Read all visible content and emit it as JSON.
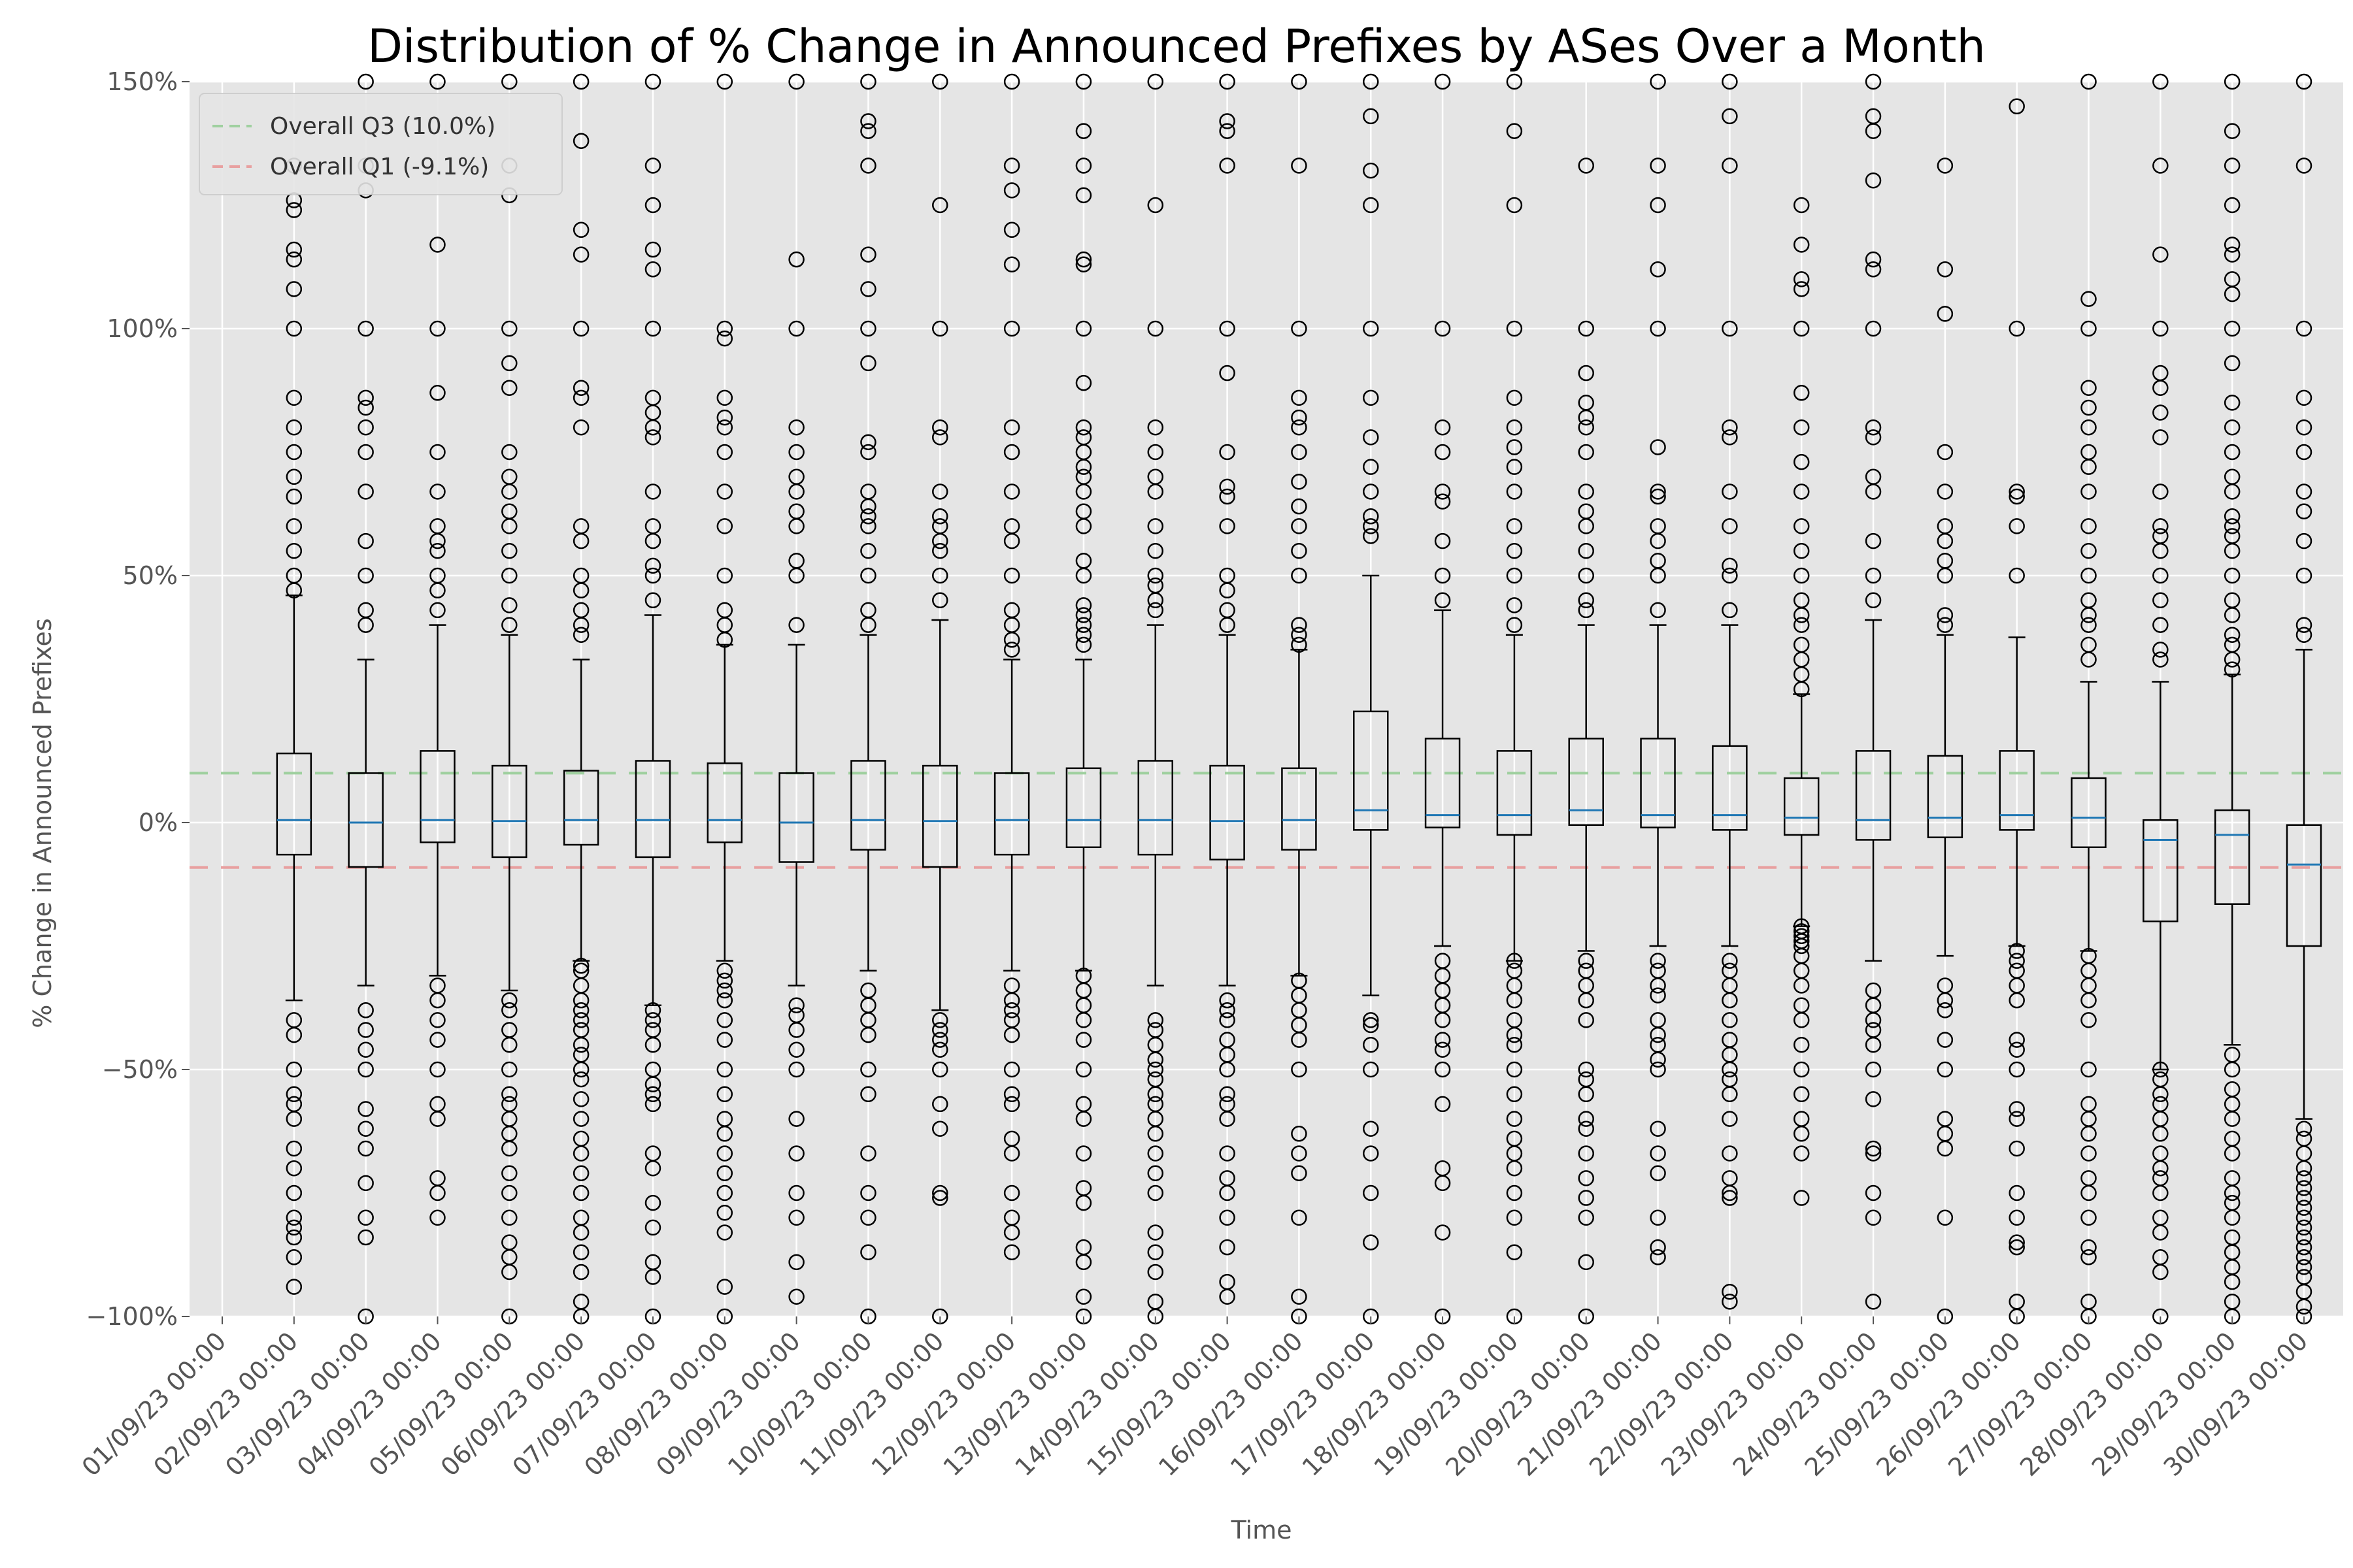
{
  "chart_data": {
    "type": "box",
    "title": "Distribution of % Change in Announced Prefixes by ASes Over a Month",
    "xlabel": "Time",
    "ylabel": "% Change in Announced Prefixes",
    "ylim": [
      -100,
      150
    ],
    "yticks": [
      -100,
      -50,
      0,
      50,
      100,
      150
    ],
    "ytick_labels": [
      "−100%",
      "−50%",
      "0%",
      "50%",
      "100%",
      "150%"
    ],
    "grid": true,
    "background": "#e5e5e5",
    "legend_position": "top-left",
    "reference_lines": [
      {
        "label": "Overall Q3 (10.0%)",
        "value": 10.0,
        "color": "#9fd09f"
      },
      {
        "label": "Overall Q1 (-9.1%)",
        "value": -9.1,
        "color": "#e8a0a0"
      }
    ],
    "categories": [
      "01/09/23 00:00",
      "02/09/23 00:00",
      "03/09/23 00:00",
      "04/09/23 00:00",
      "05/09/23 00:00",
      "06/09/23 00:00",
      "07/09/23 00:00",
      "08/09/23 00:00",
      "09/09/23 00:00",
      "10/09/23 00:00",
      "11/09/23 00:00",
      "12/09/23 00:00",
      "13/09/23 00:00",
      "14/09/23 00:00",
      "15/09/23 00:00",
      "16/09/23 00:00",
      "17/09/23 00:00",
      "18/09/23 00:00",
      "19/09/23 00:00",
      "20/09/23 00:00",
      "21/09/23 00:00",
      "22/09/23 00:00",
      "23/09/23 00:00",
      "24/09/23 00:00",
      "25/09/23 00:00",
      "26/09/23 00:00",
      "27/09/23 00:00",
      "28/09/23 00:00",
      "29/09/23 00:00",
      "30/09/23 00:00"
    ],
    "boxes": [
      {
        "date": "02/09/23 00:00",
        "whislo": -36,
        "q1": -6.5,
        "med": 0.5,
        "q3": 14,
        "whishi": 46,
        "outliers": [
          -94,
          -88,
          -84,
          -82,
          -80,
          -75,
          -70,
          -66,
          -60,
          -57,
          -55,
          -50,
          -43,
          -40,
          47,
          50,
          55,
          60,
          66,
          70,
          75,
          80,
          86,
          100,
          108,
          114,
          116,
          124,
          126,
          133
        ]
      },
      {
        "date": "03/09/23 00:00",
        "whislo": -33,
        "q1": -9,
        "med": 0,
        "q3": 10,
        "whishi": 33,
        "outliers": [
          -100,
          -84,
          -80,
          -73,
          -66,
          -62,
          -58,
          -50,
          -46,
          -42,
          -38,
          40,
          43,
          50,
          57,
          67,
          75,
          80,
          84,
          86,
          100,
          128,
          133,
          150
        ]
      },
      {
        "date": "04/09/23 00:00",
        "whislo": -31,
        "q1": -4,
        "med": 0.5,
        "q3": 14.5,
        "whishi": 40,
        "outliers": [
          -80,
          -75,
          -72,
          -60,
          -57,
          -50,
          -44,
          -40,
          -36,
          -33,
          43,
          47,
          50,
          55,
          57,
          60,
          67,
          75,
          87,
          100,
          117,
          150
        ]
      },
      {
        "date": "05/09/23 00:00",
        "whislo": -34,
        "q1": -7,
        "med": 0.3,
        "q3": 11.5,
        "whishi": 38,
        "outliers": [
          -100,
          -91,
          -88,
          -85,
          -80,
          -75,
          -71,
          -66,
          -63,
          -60,
          -57,
          -55,
          -50,
          -45,
          -42,
          -38,
          -36,
          40,
          44,
          50,
          55,
          60,
          63,
          67,
          70,
          75,
          88,
          93,
          100,
          127,
          133,
          150
        ]
      },
      {
        "date": "06/09/23 00:00",
        "whislo": -28,
        "q1": -4.5,
        "med": 0.5,
        "q3": 10.5,
        "whishi": 33,
        "outliers": [
          -100,
          -97,
          -91,
          -87,
          -83,
          -80,
          -75,
          -71,
          -67,
          -64,
          -60,
          -56,
          -52,
          -50,
          -47,
          -45,
          -42,
          -40,
          -38,
          -36,
          -33,
          -30,
          -29,
          38,
          40,
          43,
          47,
          50,
          57,
          60,
          80,
          86,
          88,
          100,
          115,
          120,
          138,
          150
        ]
      },
      {
        "date": "07/09/23 00:00",
        "whislo": -37,
        "q1": -7,
        "med": 0.5,
        "q3": 12.5,
        "whishi": 42,
        "outliers": [
          -100,
          -92,
          -89,
          -82,
          -77,
          -70,
          -67,
          -57,
          -55,
          -53,
          -50,
          -45,
          -42,
          -40,
          -38,
          45,
          50,
          52,
          57,
          60,
          67,
          78,
          80,
          83,
          86,
          100,
          112,
          116,
          125,
          133,
          150
        ]
      },
      {
        "date": "08/09/23 00:00",
        "whislo": -28,
        "q1": -4,
        "med": 0.5,
        "q3": 12,
        "whishi": 36,
        "outliers": [
          -100,
          -94,
          -83,
          -79,
          -75,
          -71,
          -67,
          -63,
          -60,
          -55,
          -50,
          -44,
          -40,
          -36,
          -34,
          -32,
          -30,
          37,
          40,
          43,
          50,
          60,
          67,
          75,
          80,
          82,
          86,
          98,
          100,
          150
        ]
      },
      {
        "date": "09/09/23 00:00",
        "whislo": -33,
        "q1": -8,
        "med": 0,
        "q3": 10,
        "whishi": 36,
        "outliers": [
          -96,
          -89,
          -80,
          -75,
          -67,
          -60,
          -50,
          -46,
          -42,
          -39,
          -37,
          40,
          50,
          53,
          60,
          63,
          67,
          70,
          75,
          80,
          100,
          114,
          150
        ]
      },
      {
        "date": "10/09/23 00:00",
        "whislo": -30,
        "q1": -5.5,
        "med": 0.5,
        "q3": 12.5,
        "whishi": 38,
        "outliers": [
          -100,
          -87,
          -80,
          -75,
          -67,
          -55,
          -50,
          -43,
          -40,
          -37,
          -34,
          40,
          43,
          50,
          55,
          60,
          62,
          64,
          67,
          75,
          77,
          93,
          100,
          108,
          115,
          133,
          140,
          142,
          150
        ]
      },
      {
        "date": "11/09/23 00:00",
        "whislo": -38,
        "q1": -9,
        "med": 0.3,
        "q3": 11.5,
        "whishi": 41,
        "outliers": [
          -100,
          -76,
          -75,
          -62,
          -57,
          -50,
          -46,
          -44,
          -42,
          -40,
          45,
          50,
          55,
          57,
          60,
          62,
          67,
          78,
          80,
          100,
          125,
          150
        ]
      },
      {
        "date": "12/09/23 00:00",
        "whislo": -30,
        "q1": -6.5,
        "med": 0.5,
        "q3": 10,
        "whishi": 33,
        "outliers": [
          -87,
          -83,
          -80,
          -75,
          -67,
          -64,
          -57,
          -55,
          -50,
          -43,
          -40,
          -38,
          -36,
          -33,
          35,
          37,
          40,
          43,
          50,
          57,
          60,
          67,
          75,
          80,
          100,
          113,
          120,
          128,
          133,
          150
        ]
      },
      {
        "date": "13/09/23 00:00",
        "whislo": -30,
        "q1": -5,
        "med": 0.5,
        "q3": 11,
        "whishi": 33,
        "outliers": [
          -100,
          -96,
          -89,
          -86,
          -77,
          -74,
          -67,
          -60,
          -57,
          -50,
          -44,
          -40,
          -37,
          -34,
          -31,
          36,
          38,
          40,
          42,
          44,
          50,
          53,
          60,
          63,
          67,
          70,
          72,
          75,
          78,
          80,
          89,
          100,
          113,
          114,
          127,
          133,
          140,
          150
        ]
      },
      {
        "date": "14/09/23 00:00",
        "whislo": -33,
        "q1": -6.5,
        "med": 0.5,
        "q3": 12.5,
        "whishi": 40,
        "outliers": [
          -100,
          -97,
          -91,
          -87,
          -83,
          -75,
          -71,
          -67,
          -63,
          -60,
          -57,
          -55,
          -52,
          -50,
          -48,
          -45,
          -42,
          -40,
          43,
          45,
          48,
          50,
          55,
          60,
          67,
          70,
          75,
          80,
          100,
          125,
          150
        ]
      },
      {
        "date": "15/09/23 00:00",
        "whislo": -33,
        "q1": -7.5,
        "med": 0.3,
        "q3": 11.5,
        "whishi": 38,
        "outliers": [
          -96,
          -93,
          -86,
          -80,
          -75,
          -72,
          -67,
          -60,
          -57,
          -55,
          -50,
          -47,
          -44,
          -40,
          -38,
          -36,
          40,
          43,
          47,
          50,
          60,
          66,
          68,
          75,
          91,
          100,
          133,
          140,
          142,
          150
        ]
      },
      {
        "date": "16/09/23 00:00",
        "whislo": -31,
        "q1": -5.5,
        "med": 0.5,
        "q3": 11,
        "whishi": 35,
        "outliers": [
          -100,
          -96,
          -80,
          -71,
          -67,
          -63,
          -50,
          -44,
          -41,
          -38,
          -35,
          -32,
          36,
          38,
          40,
          50,
          55,
          60,
          64,
          69,
          75,
          80,
          82,
          86,
          100,
          133,
          150
        ]
      },
      {
        "date": "17/09/23 00:00",
        "whislo": -35,
        "q1": -1.5,
        "med": 2.5,
        "q3": 22.5,
        "whishi": 50,
        "outliers": [
          -100,
          -85,
          -75,
          -67,
          -62,
          -50,
          -45,
          -41,
          -40,
          58,
          60,
          62,
          67,
          72,
          78,
          86,
          100,
          125,
          132,
          143,
          150
        ]
      },
      {
        "date": "18/09/23 00:00",
        "whislo": -25,
        "q1": -1,
        "med": 1.5,
        "q3": 17,
        "whishi": 43,
        "outliers": [
          -100,
          -83,
          -73,
          -70,
          -57,
          -50,
          -46,
          -44,
          -40,
          -37,
          -34,
          -31,
          -28,
          45,
          50,
          57,
          65,
          67,
          75,
          80,
          100,
          150
        ]
      },
      {
        "date": "19/09/23 00:00",
        "whislo": -28,
        "q1": -2.5,
        "med": 1.5,
        "q3": 14.5,
        "whishi": 38,
        "outliers": [
          -100,
          -87,
          -80,
          -75,
          -70,
          -67,
          -64,
          -60,
          -55,
          -50,
          -45,
          -43,
          -40,
          -36,
          -33,
          -30,
          -28,
          40,
          44,
          50,
          55,
          60,
          67,
          72,
          76,
          80,
          86,
          100,
          125,
          140,
          150
        ]
      },
      {
        "date": "20/09/23 00:00",
        "whislo": -26,
        "q1": -0.5,
        "med": 2.5,
        "q3": 17,
        "whishi": 40,
        "outliers": [
          -100,
          -89,
          -80,
          -76,
          -72,
          -67,
          -62,
          -60,
          -55,
          -52,
          -50,
          -40,
          -36,
          -33,
          -30,
          -28,
          43,
          45,
          50,
          55,
          60,
          63,
          67,
          75,
          80,
          82,
          85,
          91,
          100,
          133
        ]
      },
      {
        "date": "21/09/23 00:00",
        "whislo": -25,
        "q1": -1,
        "med": 1.5,
        "q3": 17,
        "whishi": 40,
        "outliers": [
          -88,
          -86,
          -80,
          -71,
          -67,
          -62,
          -50,
          -48,
          -45,
          -43,
          -40,
          -35,
          -33,
          -30,
          -28,
          43,
          50,
          53,
          57,
          60,
          66,
          67,
          76,
          100,
          112,
          125,
          133,
          150
        ]
      },
      {
        "date": "22/09/23 00:00",
        "whislo": -25,
        "q1": -1.5,
        "med": 1.5,
        "q3": 15.5,
        "whishi": 40,
        "outliers": [
          -97,
          -95,
          -76,
          -75,
          -72,
          -67,
          -60,
          -55,
          -52,
          -50,
          -47,
          -44,
          -40,
          -36,
          -33,
          -30,
          -28,
          43,
          50,
          52,
          60,
          67,
          78,
          80,
          100,
          133,
          143,
          150
        ]
      },
      {
        "date": "23/09/23 00:00",
        "whislo": -21,
        "q1": -2.5,
        "med": 1,
        "q3": 9,
        "whishi": 26,
        "outliers": [
          -76,
          -67,
          -63,
          -60,
          -55,
          -50,
          -45,
          -40,
          -37,
          -33,
          -30,
          -27,
          -25,
          -24,
          -23,
          -22,
          -21,
          27,
          30,
          33,
          36,
          40,
          42,
          45,
          50,
          55,
          60,
          67,
          73,
          80,
          87,
          100,
          108,
          110,
          117,
          125
        ]
      },
      {
        "date": "24/09/23 00:00",
        "whislo": -28,
        "q1": -3.5,
        "med": 0.5,
        "q3": 14.5,
        "whishi": 41,
        "outliers": [
          -97,
          -80,
          -75,
          -67,
          -66,
          -56,
          -50,
          -45,
          -42,
          -40,
          -37,
          -34,
          45,
          50,
          57,
          67,
          70,
          78,
          80,
          100,
          112,
          114,
          130,
          140,
          143,
          150
        ]
      },
      {
        "date": "25/09/23 00:00",
        "whislo": -27,
        "q1": -3,
        "med": 1,
        "q3": 13.5,
        "whishi": 38,
        "outliers": [
          -100,
          -80,
          -66,
          -63,
          -60,
          -50,
          -44,
          -38,
          -36,
          -33,
          40,
          42,
          50,
          53,
          57,
          60,
          67,
          75,
          103,
          112,
          133
        ]
      },
      {
        "date": "26/09/23 00:00",
        "whislo": -25,
        "q1": -1.5,
        "med": 1.5,
        "q3": 14.5,
        "whishi": 37.5,
        "outliers": [
          -100,
          -97,
          -86,
          -85,
          -80,
          -75,
          -66,
          -60,
          -58,
          -50,
          -46,
          -44,
          -36,
          -33,
          -30,
          -28,
          -26,
          50,
          60,
          66,
          67,
          100,
          145
        ]
      },
      {
        "date": "27/09/23 00:00",
        "whislo": -26,
        "q1": -5,
        "med": 1,
        "q3": 9,
        "whishi": 28.5,
        "outliers": [
          -100,
          -97,
          -88,
          -86,
          -80,
          -75,
          -72,
          -67,
          -63,
          -60,
          -57,
          -50,
          -40,
          -36,
          -33,
          -30,
          -27,
          33,
          36,
          40,
          42,
          45,
          50,
          55,
          60,
          67,
          72,
          75,
          80,
          84,
          88,
          100,
          106,
          150
        ]
      },
      {
        "date": "28/09/23 00:00",
        "whislo": -50,
        "q1": -20,
        "med": -3.5,
        "q3": 0.5,
        "whishi": 28.5,
        "outliers": [
          -100,
          -91,
          -88,
          -83,
          -80,
          -75,
          -72,
          -70,
          -67,
          -63,
          -60,
          -57,
          -55,
          -52,
          -50,
          33,
          35,
          40,
          45,
          50,
          55,
          58,
          60,
          67,
          78,
          83,
          88,
          91,
          100,
          115,
          133,
          150
        ]
      },
      {
        "date": "29/09/23 00:00",
        "whislo": -45,
        "q1": -16.5,
        "med": -2.5,
        "q3": 2.5,
        "whishi": 30,
        "outliers": [
          -100,
          -97,
          -93,
          -90,
          -87,
          -84,
          -80,
          -77,
          -75,
          -72,
          -67,
          -64,
          -60,
          -57,
          -54,
          -50,
          -47,
          31,
          33,
          36,
          38,
          42,
          45,
          50,
          55,
          58,
          60,
          62,
          67,
          70,
          75,
          80,
          85,
          93,
          100,
          107,
          110,
          115,
          117,
          125,
          133,
          140,
          150
        ]
      },
      {
        "date": "30/09/23 00:00",
        "whislo": -60,
        "q1": -25,
        "med": -8.5,
        "q3": -0.5,
        "whishi": 35,
        "outliers": [
          -100,
          -98,
          -95,
          -92,
          -90,
          -88,
          -86,
          -84,
          -82,
          -80,
          -78,
          -76,
          -74,
          -72,
          -70,
          -67,
          -64,
          -62,
          38,
          40,
          50,
          57,
          63,
          67,
          75,
          80,
          86,
          100,
          133,
          150
        ]
      }
    ]
  }
}
